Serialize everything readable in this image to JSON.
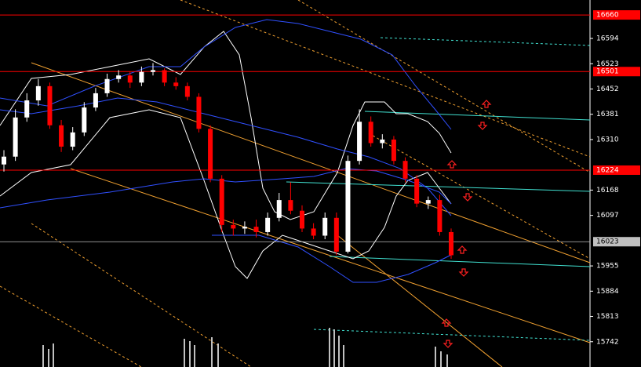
{
  "chart_data": {
    "type": "candlestick",
    "open": [
      16240,
      16262,
      16372,
      16420,
      16460,
      16350,
      16290,
      16330,
      16400,
      16440,
      16480,
      16490,
      16470,
      16500,
      16505,
      16470,
      16460,
      16430,
      16340,
      16200,
      16070,
      16060,
      16065,
      16050,
      16090,
      16140,
      16110,
      16060,
      16040,
      16090,
      15995,
      16250,
      16360,
      16300,
      16310,
      16250,
      16200,
      16130,
      16140,
      16050
    ],
    "high": [
      16280,
      16395,
      16440,
      16480,
      16470,
      16365,
      16345,
      16415,
      16455,
      16495,
      16505,
      16500,
      16515,
      16525,
      16510,
      16485,
      16470,
      16440,
      16350,
      16210,
      16085,
      16080,
      16085,
      16105,
      16160,
      16190,
      16125,
      16075,
      16105,
      16105,
      16265,
      16395,
      16375,
      16325,
      16320,
      16260,
      16210,
      16150,
      16155,
      16060
    ],
    "low": [
      16220,
      16250,
      16360,
      16405,
      16340,
      16275,
      16280,
      16320,
      16390,
      16430,
      16470,
      16455,
      16460,
      16490,
      16460,
      16450,
      16420,
      16330,
      16190,
      16050,
      16040,
      16045,
      16035,
      16040,
      16080,
      16100,
      16050,
      16030,
      16030,
      15985,
      15990,
      16240,
      16290,
      16285,
      16240,
      16190,
      16120,
      16115,
      16040,
      15975
    ],
    "close": [
      16262,
      16372,
      16420,
      16460,
      16350,
      16290,
      16330,
      16400,
      16440,
      16480,
      16490,
      16470,
      16500,
      16505,
      16470,
      16460,
      16430,
      16340,
      16200,
      16070,
      16060,
      16065,
      16050,
      16090,
      16140,
      16110,
      16060,
      16040,
      16090,
      15995,
      16250,
      16360,
      16300,
      16310,
      16250,
      16200,
      16130,
      16140,
      16050,
      15985
    ],
    "up_color": "#ffffff",
    "down_color": "#ff0000",
    "ylim": [
      15671,
      16702
    ],
    "yticks": [
      16594,
      16523,
      16452,
      16381,
      16310,
      16168,
      16097,
      15955,
      15884,
      15813,
      15742
    ],
    "levels": [
      16660,
      16501,
      16224
    ],
    "level_color": "#ff0000",
    "current_price": 16023,
    "current_color": "#c0c0c0"
  }
}
